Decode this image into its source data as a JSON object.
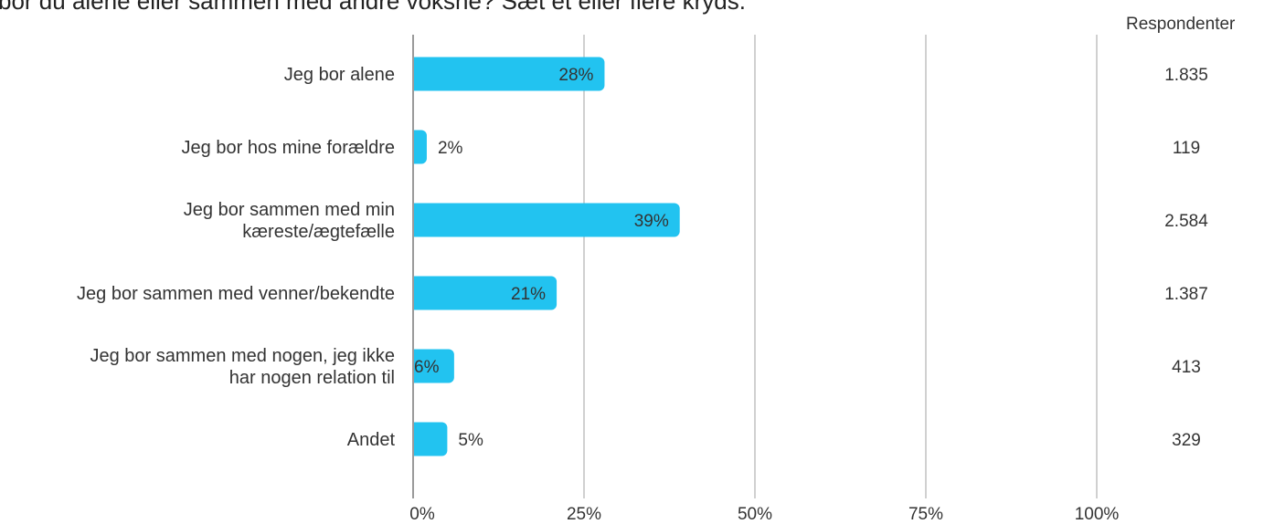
{
  "header": {
    "title": "bor du alene eller sammen med andre voksne? Sæt et eller flere kryds.",
    "count_header": "Respondenter"
  },
  "chart_data": {
    "type": "bar",
    "orientation": "horizontal",
    "title": "bor du alene eller sammen med andre voksne? Sæt et eller flere kryds.",
    "categories": [
      [
        "Jeg bor alene"
      ],
      [
        "Jeg bor hos mine forældre"
      ],
      [
        "Jeg bor sammen med min",
        "kæreste/ægtefælle"
      ],
      [
        "Jeg bor sammen med venner/bekendte"
      ],
      [
        "Jeg bor sammen med nogen, jeg ikke",
        "har nogen relation til"
      ],
      [
        "Andet"
      ]
    ],
    "values": [
      28,
      2,
      39,
      21,
      6,
      5
    ],
    "value_labels": [
      "28%",
      "2%",
      "39%",
      "21%",
      "6%",
      "5%"
    ],
    "respondents": [
      "1.835",
      "119",
      "2.584",
      "1.387",
      "413",
      "329"
    ],
    "x_ticks": [
      0,
      25,
      50,
      75,
      100
    ],
    "x_tick_labels": [
      "0%",
      "25%",
      "50%",
      "75%",
      "100%"
    ],
    "xlim": [
      0,
      100
    ],
    "grid": true,
    "bar_color": "#22c3f0",
    "axis_color": "#9a9a9a",
    "grid_color": "#b0b0b0"
  }
}
